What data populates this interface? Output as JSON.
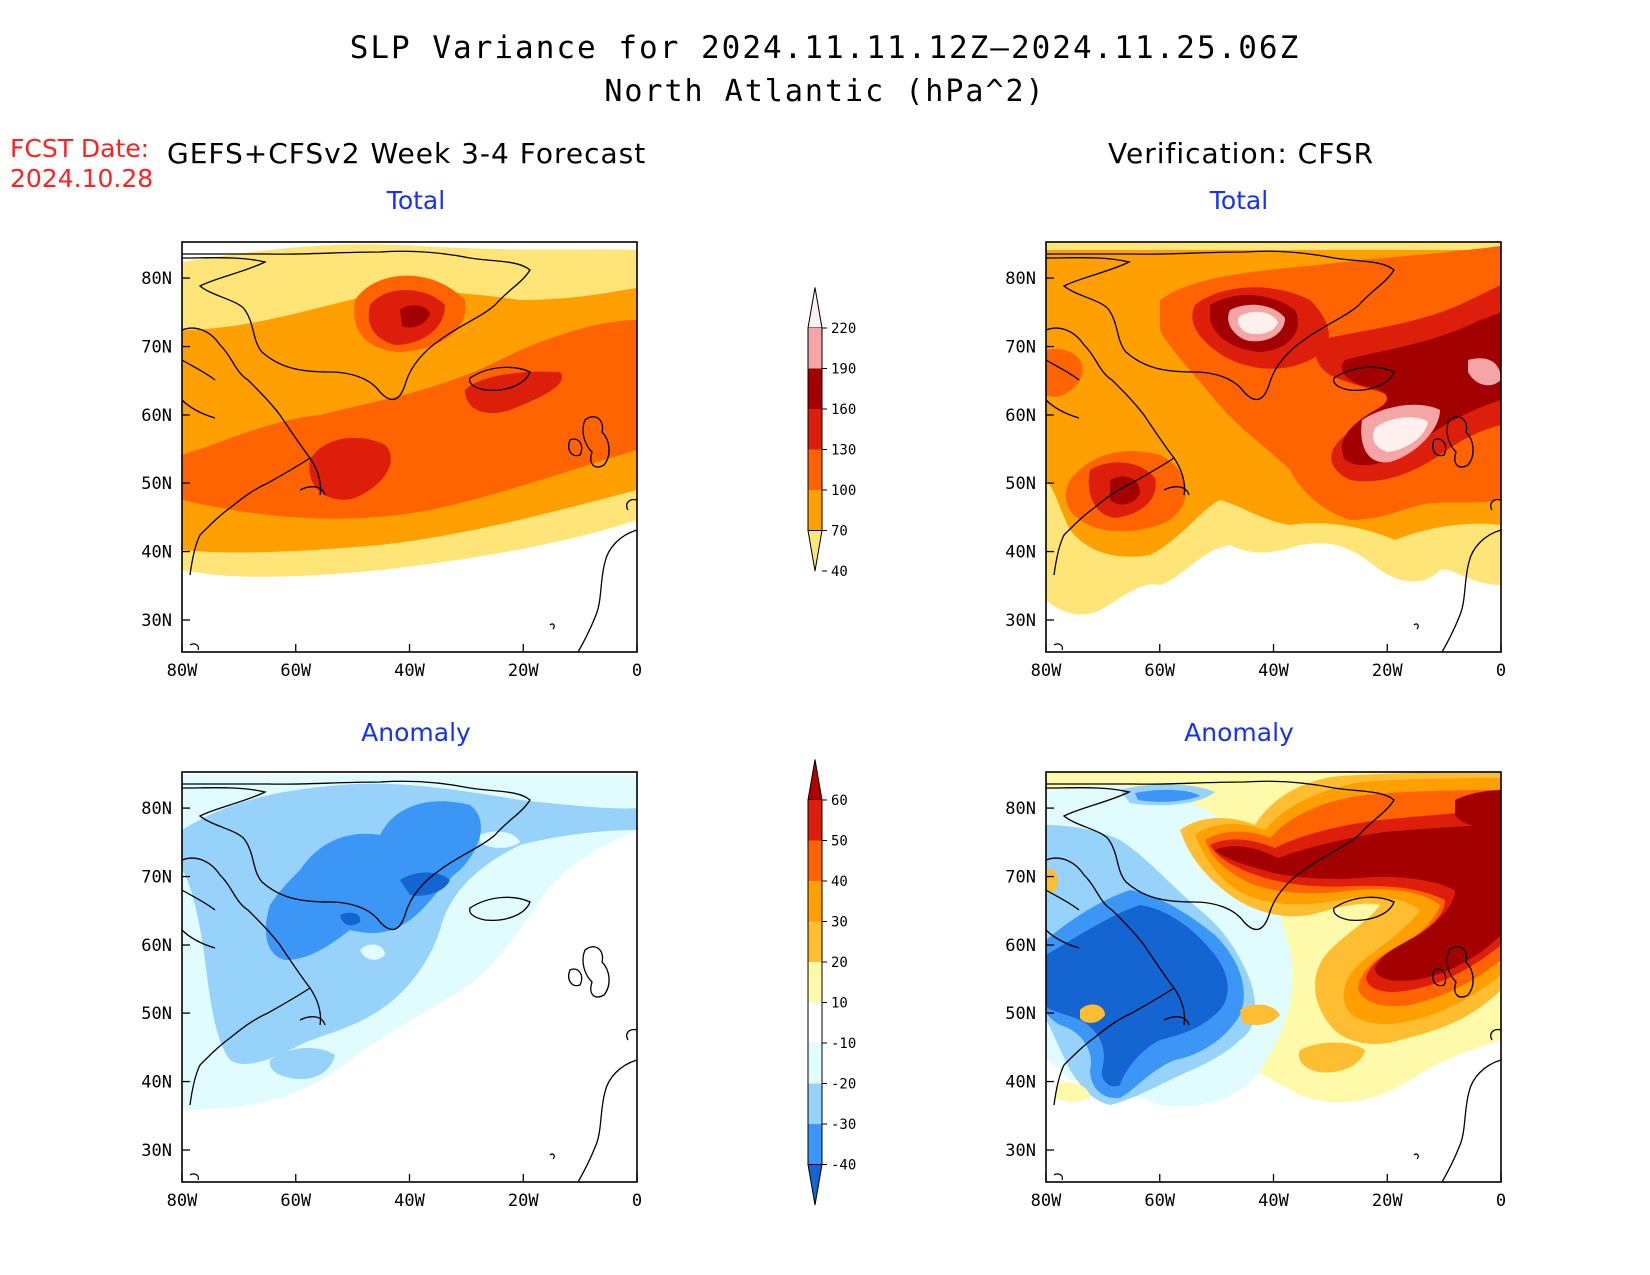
{
  "title": {
    "line1": "SLP Variance for 2024.11.11.12Z–2024.11.25.06Z",
    "line2": "North Atlantic (hPa^2)"
  },
  "fcst": {
    "label": "FCST Date:",
    "date": "2024.10.28"
  },
  "left_header": "GEFS+CFSv2 Week 3-4 Forecast",
  "right_header": "Verification: CFSR",
  "panels": {
    "fc_total": {
      "subtitle": "Total"
    },
    "vf_total": {
      "subtitle": "Total"
    },
    "fc_anom": {
      "subtitle": "Anomaly"
    },
    "vf_anom": {
      "subtitle": "Anomaly"
    }
  },
  "axes": {
    "lat_labels": [
      "80N",
      "70N",
      "60N",
      "50N",
      "40N",
      "30N"
    ],
    "lon_labels": [
      "80W",
      "60W",
      "40W",
      "20W",
      "0"
    ]
  },
  "colorbars": {
    "total": {
      "labels": [
        "220",
        "190",
        "160",
        "130",
        "100",
        "70",
        "40"
      ],
      "colors": [
        "#fef0ec",
        "#f4a5a5",
        "#a30000",
        "#dc1e0a",
        "#ff6400",
        "#ff9f00",
        "#ffe578"
      ]
    },
    "anomaly": {
      "labels": [
        "60",
        "50",
        "40",
        "30",
        "20",
        "10",
        "-10",
        "-20",
        "-30",
        "-40"
      ],
      "colors": [
        "#b40000",
        "#dc1e0a",
        "#ff6400",
        "#ff9f00",
        "#ffbe32",
        "#fffaaa",
        "#ffffff",
        "#e0fcff",
        "#96d2fa",
        "#3c96f5",
        "#1464d2"
      ]
    }
  },
  "colors": {
    "title_red": "#ff2020",
    "subtitle_blue": "#1530ff"
  }
}
